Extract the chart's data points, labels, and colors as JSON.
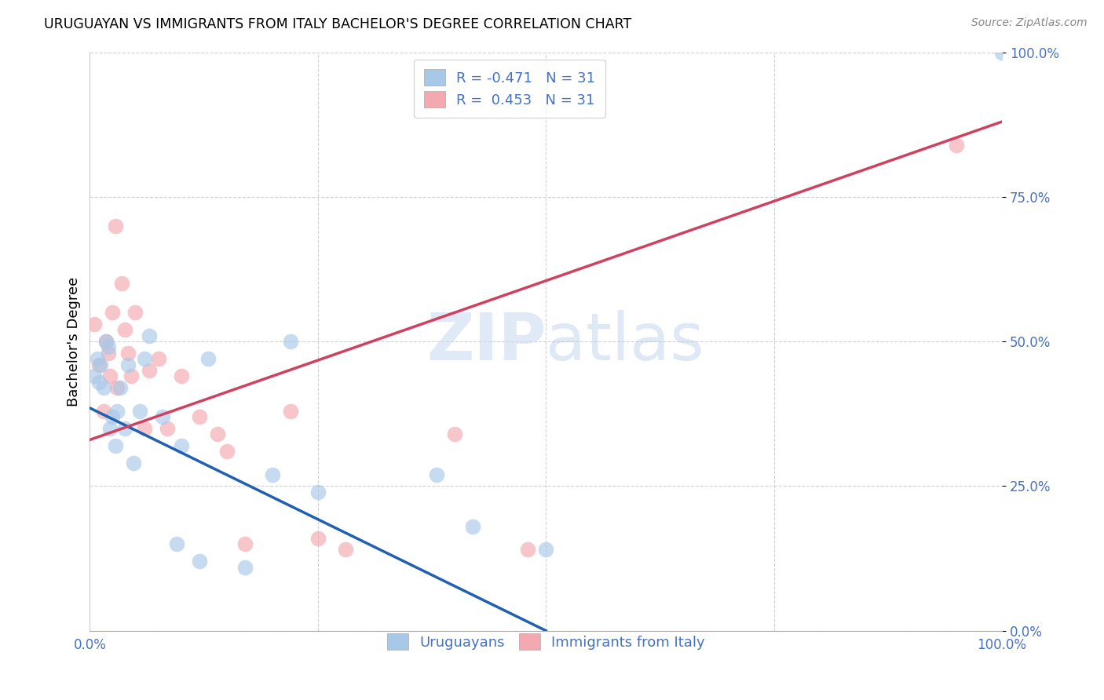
{
  "title": "URUGUAYAN VS IMMIGRANTS FROM ITALY BACHELOR'S DEGREE CORRELATION CHART",
  "source": "Source: ZipAtlas.com",
  "ylabel": "Bachelor's Degree",
  "xlim": [
    0,
    1.0
  ],
  "ylim": [
    0,
    1.0
  ],
  "ytick_labels": [
    "0.0%",
    "25.0%",
    "50.0%",
    "75.0%",
    "100.0%"
  ],
  "ytick_values": [
    0.0,
    0.25,
    0.5,
    0.75,
    1.0
  ],
  "xtick_labels": [
    "0.0%",
    "100.0%"
  ],
  "xtick_values": [
    0.0,
    1.0
  ],
  "legend_labels": [
    "Uruguayans",
    "Immigrants from Italy"
  ],
  "watermark": "ZIPatlas",
  "blue_color": "#a8c8e8",
  "pink_color": "#f4a8b0",
  "blue_line_color": "#2060b0",
  "pink_line_color": "#d04060",
  "uruguayan_x": [
    0.005,
    0.008,
    0.01,
    0.012,
    0.015,
    0.018,
    0.02,
    0.022,
    0.025,
    0.028,
    0.03,
    0.033,
    0.038,
    0.042,
    0.048,
    0.055,
    0.06,
    0.065,
    0.08,
    0.095,
    0.1,
    0.12,
    0.13,
    0.17,
    0.2,
    0.22,
    0.25,
    0.38,
    0.42,
    0.5,
    1.0
  ],
  "uruguayan_y": [
    0.44,
    0.47,
    0.43,
    0.46,
    0.42,
    0.5,
    0.49,
    0.35,
    0.37,
    0.32,
    0.38,
    0.42,
    0.35,
    0.46,
    0.29,
    0.38,
    0.47,
    0.51,
    0.37,
    0.15,
    0.32,
    0.12,
    0.47,
    0.11,
    0.27,
    0.5,
    0.24,
    0.27,
    0.18,
    0.14,
    1.0
  ],
  "italy_x": [
    0.005,
    0.01,
    0.015,
    0.018,
    0.02,
    0.022,
    0.025,
    0.028,
    0.03,
    0.035,
    0.038,
    0.042,
    0.045,
    0.05,
    0.06,
    0.065,
    0.075,
    0.085,
    0.1,
    0.12,
    0.14,
    0.15,
    0.17,
    0.22,
    0.25,
    0.28,
    0.4,
    0.48,
    0.95
  ],
  "italy_y": [
    0.53,
    0.46,
    0.38,
    0.5,
    0.48,
    0.44,
    0.55,
    0.7,
    0.42,
    0.6,
    0.52,
    0.48,
    0.44,
    0.55,
    0.35,
    0.45,
    0.47,
    0.35,
    0.44,
    0.37,
    0.34,
    0.31,
    0.15,
    0.38,
    0.16,
    0.14,
    0.34,
    0.14,
    0.84
  ],
  "blue_line_x0": 0.0,
  "blue_line_y0": 0.385,
  "blue_line_x1": 0.5,
  "blue_line_y1": 0.0,
  "pink_line_x0": 0.0,
  "pink_line_y0": 0.33,
  "pink_line_x1": 1.0,
  "pink_line_y1": 0.88
}
